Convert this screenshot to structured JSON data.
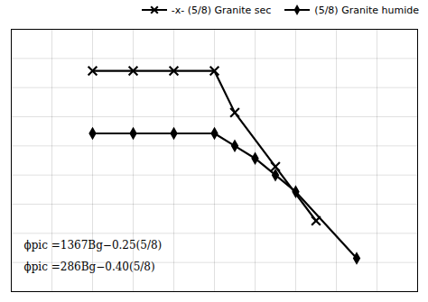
{
  "chart_data": {
    "type": "line",
    "series": [
      {
        "name": "-x- (5/8) Granite sec",
        "color": "black",
        "marker": "x",
        "x": [
          2,
          3,
          4,
          5,
          5.5,
          6.5,
          7.5
        ],
        "values": [
          78,
          78,
          78,
          78,
          68,
          55,
          42
        ]
      },
      {
        "name": "(5/8) Granite humide",
        "color": "black",
        "marker": "diamond",
        "x": [
          2,
          3,
          4,
          5,
          5.5,
          6,
          6.5,
          7,
          8.5
        ],
        "values": [
          63,
          63,
          63,
          63,
          60,
          57,
          53,
          49,
          33
        ]
      }
    ],
    "xlim": [
      0,
      10
    ],
    "ylim": [
      25,
      88
    ],
    "xticks": [
      0,
      1,
      2,
      3,
      4,
      5,
      6,
      7,
      8,
      9,
      10
    ],
    "yticks": [
      25,
      32,
      39,
      46,
      53,
      60,
      67,
      74,
      81,
      88
    ],
    "grid": true,
    "legend": "upper right",
    "tick_labels": false,
    "annotations": [
      "ϕpic =1367Bg−0.25(5/8)",
      "ϕpic =286Bg−0.40(5/8)"
    ]
  }
}
